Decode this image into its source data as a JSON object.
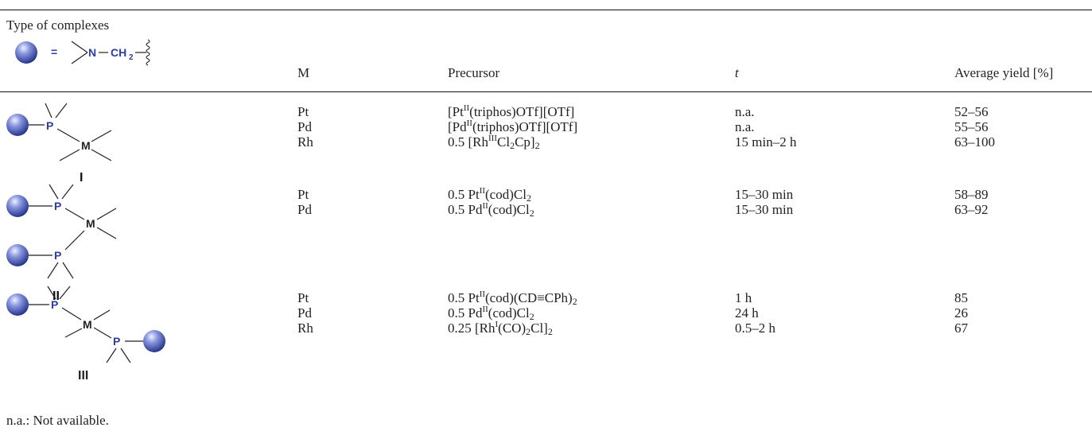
{
  "legend": {
    "title": "Type of complexes",
    "equals": "=",
    "n_label": "N",
    "ch2_label": "CH",
    "ch2_sub": "2"
  },
  "header": {
    "m": "M",
    "precursor": "Precursor",
    "t": "t",
    "yield": "Average yield [%]"
  },
  "structures": {
    "p_label": "P",
    "m_label": "M",
    "roman_1": "I",
    "roman_2": "II",
    "roman_3": "III"
  },
  "groups": [
    {
      "rows": [
        {
          "m": "Pt",
          "pre": "[Pt",
          "sup": "II",
          "post": "(triphos)OTf][OTf]",
          "t": "n.a.",
          "yield": "52–56"
        },
        {
          "m": "Pd",
          "pre": "[Pd",
          "sup": "II",
          "post": "(triphos)OTf][OTf]",
          "t": "n.a.",
          "yield": "55–56"
        },
        {
          "m": "Rh",
          "pre": "0.5 [Rh",
          "sup": "III",
          "post": "Cl",
          "sub1": "2",
          "post2": "Cp]",
          "sub2": "2",
          "t": "15 min–2 h",
          "yield": "63–100"
        }
      ]
    },
    {
      "rows": [
        {
          "m": "Pt",
          "pre": "0.5 Pt",
          "sup": "II",
          "post": "(cod)Cl",
          "sub1": "2",
          "t": "15–30 min",
          "yield": "58–89"
        },
        {
          "m": "Pd",
          "pre": "0.5 Pd",
          "sup": "II",
          "post": "(cod)Cl",
          "sub1": "2",
          "t": "15–30 min",
          "yield": "63–92"
        }
      ]
    },
    {
      "rows": [
        {
          "m": "Pt",
          "pre": "0.5 Pt",
          "sup": "II",
          "post": "(cod)(CD≡CPh)",
          "sub1": "2",
          "t": "1 h",
          "yield": "85"
        },
        {
          "m": "Pd",
          "pre": "0.5 Pd",
          "sup": "II",
          "post": "(cod)Cl",
          "sub1": "2",
          "t": "24 h",
          "yield": "26"
        },
        {
          "m": "Rh",
          "pre": "0.25 [Rh",
          "sup": "I",
          "post": "(CO)",
          "sub1": "2",
          "post2": "Cl]",
          "sub2": "2",
          "t": "0.5–2 h",
          "yield": "67"
        }
      ]
    }
  ],
  "footnote": "n.a.: Not available.",
  "colors": {
    "sphere": "#2b3a99",
    "atom_label": "#2b3fa0",
    "rule": "#111111"
  }
}
